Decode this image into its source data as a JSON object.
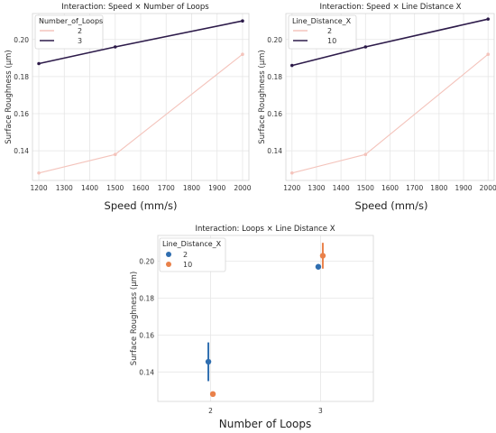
{
  "colors": {
    "light_series": "#f4c4bc",
    "dark_series": "#2d1b4a",
    "blue": "#2f6eb0",
    "orange": "#e9814a"
  },
  "chart_data": [
    {
      "type": "line",
      "title": "Interaction: Speed × Number of Loops",
      "xlabel": "Speed (mm/s)",
      "ylabel": "Surface Roughness (μm)",
      "x": [
        1200,
        1500,
        2000
      ],
      "x_ticks": [
        1200,
        1300,
        1400,
        1500,
        1600,
        1700,
        1800,
        1900,
        2000
      ],
      "xlim": [
        1175,
        2025
      ],
      "ylim": [
        0.124,
        0.214
      ],
      "y_ticks": [
        0.14,
        0.16,
        0.18,
        0.2
      ],
      "grid": true,
      "legend": {
        "title": "Number_of_Loops",
        "placement": "top-left"
      },
      "series": [
        {
          "name": "2",
          "values": [
            0.128,
            0.138,
            0.192
          ],
          "color": "#f4c4bc"
        },
        {
          "name": "3",
          "values": [
            0.187,
            0.196,
            0.21
          ],
          "color": "#2d1b4a"
        }
      ]
    },
    {
      "type": "line",
      "title": "Interaction: Speed × Line Distance X",
      "xlabel": "Speed (mm/s)",
      "ylabel": "Surface Roughness (μm)",
      "x": [
        1200,
        1500,
        2000
      ],
      "x_ticks": [
        1200,
        1300,
        1400,
        1500,
        1600,
        1700,
        1800,
        1900,
        2000
      ],
      "xlim": [
        1175,
        2025
      ],
      "ylim": [
        0.124,
        0.214
      ],
      "y_ticks": [
        0.14,
        0.16,
        0.18,
        0.2
      ],
      "grid": true,
      "legend": {
        "title": "Line_Distance_X",
        "placement": "top-left"
      },
      "series": [
        {
          "name": "2",
          "values": [
            0.128,
            0.138,
            0.192
          ],
          "color": "#f4c4bc"
        },
        {
          "name": "10",
          "values": [
            0.186,
            0.196,
            0.211
          ],
          "color": "#2d1b4a"
        }
      ]
    },
    {
      "type": "scatter",
      "title": "Interaction: Loops × Line Distance X",
      "xlabel": "Number of Loops",
      "ylabel": "Surface Roughness (μm)",
      "categories": [
        "2",
        "3"
      ],
      "ylim": [
        0.124,
        0.214
      ],
      "y_ticks": [
        0.14,
        0.16,
        0.18,
        0.2
      ],
      "grid": true,
      "legend": {
        "title": "Line_Distance_X",
        "placement": "top-left"
      },
      "series": [
        {
          "name": "2",
          "values": [
            0.1455,
            0.197
          ],
          "error_low": [
            0.135,
            null
          ],
          "error_high": [
            0.156,
            null
          ],
          "color": "#2f6eb0"
        },
        {
          "name": "10",
          "values": [
            0.128,
            0.203
          ],
          "error_low": [
            null,
            0.196
          ],
          "error_high": [
            null,
            0.21
          ],
          "color": "#e9814a"
        }
      ]
    }
  ]
}
